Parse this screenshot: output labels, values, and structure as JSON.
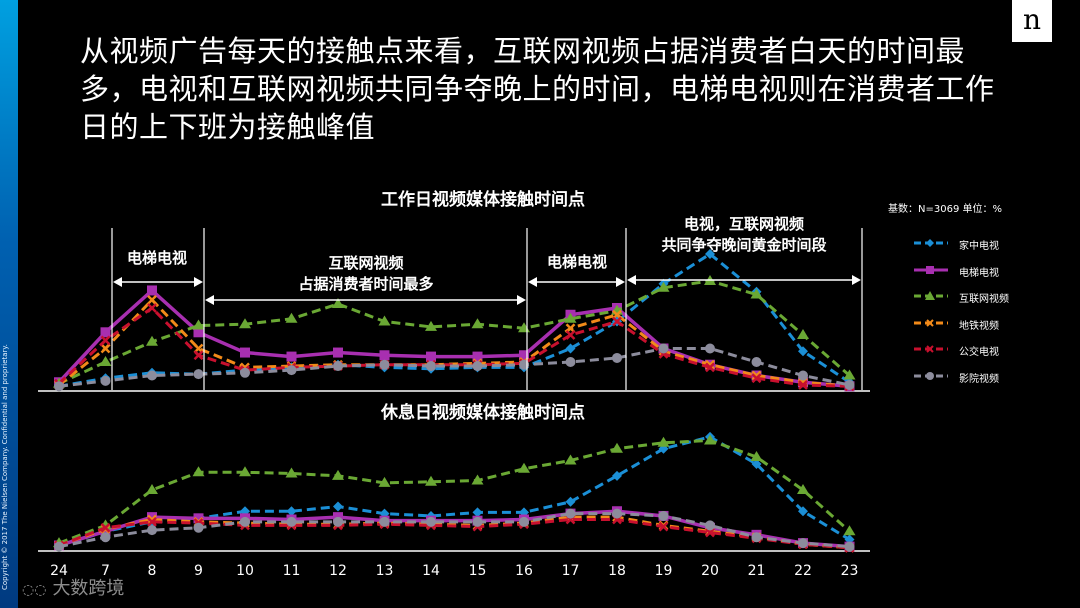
{
  "headline": "从视频广告每天的接触点来看，互联网视频占据消费者白天的时间最多，电视和互联网视频共同争夺晚上的时间，电梯电视则在消费者工作日的上下班为接触峰值",
  "logo_text": "n",
  "copyright": "Copyright © 2017 The Nielsen Company. Confidential and proprietary.",
  "base_note": "基数：N=3069  单位：%",
  "watermark": "大数跨境",
  "annotations": {
    "elevator": "电梯电视",
    "internet": [
      "互联网视频",
      "占据消费者时间最多"
    ],
    "elevator2": "电梯电视",
    "evening": [
      "电视，互联网视频",
      "共同争夺晚间黄金时间段"
    ]
  },
  "colors": {
    "家中电视": "#1b8fd6",
    "电梯电视": "#a82fb0",
    "互联网视频": "#6aa834",
    "地铁视频": "#f28a19",
    "公交电视": "#c8102e",
    "影院视频": "#8c8c9c"
  },
  "legend": [
    "家中电视",
    "电梯电视",
    "互联网视频",
    "地铁视频",
    "公交电视",
    "影院视频"
  ],
  "chart_data": [
    {
      "type": "line",
      "title": "工作日视频媒体接触时间点",
      "x": [
        "24",
        "7",
        "8",
        "9",
        "10",
        "11",
        "12",
        "13",
        "14",
        "15",
        "16",
        "17",
        "18",
        "19",
        "20",
        "21",
        "22",
        "23"
      ],
      "ylim": [
        0,
        100
      ],
      "series": [
        {
          "name": "家中电视",
          "values": [
            2,
            8,
            12,
            11,
            14,
            16,
            18,
            16,
            15,
            16,
            16,
            30,
            50,
            78,
            100,
            72,
            28,
            5
          ]
        },
        {
          "name": "电梯电视",
          "values": [
            5,
            42,
            73,
            42,
            27,
            24,
            27,
            25,
            24,
            24,
            25,
            55,
            60,
            30,
            18,
            10,
            5,
            2
          ]
        },
        {
          "name": "互联网视频",
          "values": [
            4,
            20,
            35,
            47,
            48,
            52,
            63,
            50,
            46,
            48,
            45,
            52,
            58,
            75,
            80,
            70,
            40,
            10
          ]
        },
        {
          "name": "地铁视频",
          "values": [
            3,
            30,
            66,
            30,
            16,
            17,
            18,
            18,
            18,
            19,
            20,
            45,
            55,
            28,
            18,
            10,
            5,
            2
          ]
        },
        {
          "name": "公交电视",
          "values": [
            4,
            36,
            60,
            25,
            14,
            16,
            17,
            18,
            18,
            18,
            19,
            40,
            50,
            26,
            16,
            8,
            3,
            2
          ]
        },
        {
          "name": "影院视频",
          "values": [
            2,
            6,
            10,
            11,
            12,
            14,
            17,
            18,
            17,
            17,
            18,
            20,
            23,
            30,
            30,
            20,
            10,
            3
          ]
        }
      ]
    },
    {
      "type": "line",
      "title": "休息日视频媒体接触时间点",
      "x": [
        "24",
        "7",
        "8",
        "9",
        "10",
        "11",
        "12",
        "13",
        "14",
        "15",
        "16",
        "17",
        "18",
        "19",
        "20",
        "21",
        "22",
        "23"
      ],
      "ylim": [
        0,
        100
      ],
      "series": [
        {
          "name": "家中电视",
          "values": [
            2,
            15,
            23,
            26,
            32,
            32,
            36,
            30,
            28,
            31,
            31,
            40,
            62,
            85,
            95,
            72,
            32,
            8
          ]
        },
        {
          "name": "电梯电视",
          "values": [
            3,
            15,
            27,
            26,
            26,
            25,
            27,
            24,
            24,
            24,
            25,
            30,
            32,
            28,
            18,
            12,
            5,
            2
          ]
        },
        {
          "name": "互联网视频",
          "values": [
            5,
            20,
            50,
            65,
            65,
            64,
            62,
            56,
            57,
            58,
            68,
            75,
            85,
            90,
            92,
            78,
            50,
            15
          ]
        },
        {
          "name": "地铁视频",
          "values": [
            3,
            17,
            25,
            23,
            22,
            21,
            21,
            22,
            21,
            20,
            22,
            27,
            27,
            20,
            15,
            10,
            4,
            1
          ]
        },
        {
          "name": "公交电视",
          "values": [
            3,
            18,
            23,
            22,
            20,
            20,
            20,
            21,
            20,
            19,
            21,
            25,
            25,
            19,
            14,
            9,
            4,
            1
          ]
        },
        {
          "name": "影院视频",
          "values": [
            2,
            10,
            16,
            18,
            23,
            23,
            23,
            23,
            23,
            23,
            23,
            30,
            30,
            28,
            20,
            10,
            5,
            2
          ]
        }
      ]
    }
  ]
}
